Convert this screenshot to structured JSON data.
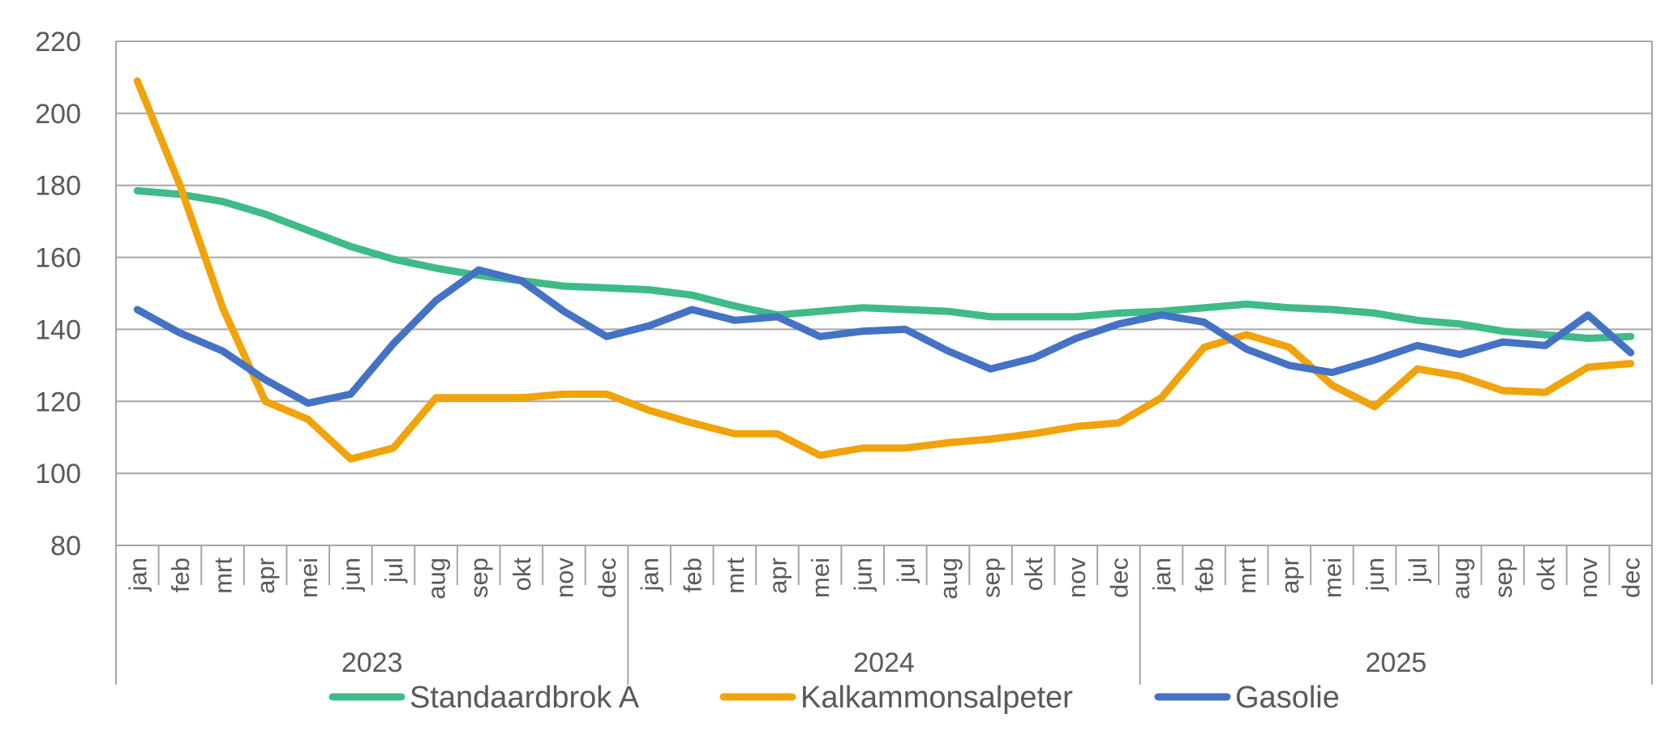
{
  "chart_data": {
    "type": "line",
    "title": "",
    "xlabel": "",
    "ylabel": "",
    "ylim": [
      80,
      220
    ],
    "yticks": [
      80,
      100,
      120,
      140,
      160,
      180,
      200,
      220
    ],
    "grid": true,
    "legend_position": "bottom",
    "years": [
      "2023",
      "2024",
      "2025"
    ],
    "months": [
      "jan",
      "feb",
      "mrt",
      "apr",
      "mei",
      "jun",
      "jul",
      "aug",
      "sep",
      "okt",
      "nov",
      "dec"
    ],
    "colors": {
      "Standaardbrok A": "#3fba89",
      "Kalkammonsalpeter": "#f0a30a",
      "Gasolie": "#4472c4"
    },
    "series": [
      {
        "name": "Standaardbrok A",
        "values": [
          178.5,
          177.5,
          175.5,
          172,
          167.5,
          163,
          159.5,
          157,
          155,
          153.5,
          152,
          151.5,
          151,
          149.5,
          146.5,
          144,
          145,
          146,
          145.5,
          145,
          143.5,
          143.5,
          143.5,
          144.5,
          145,
          146,
          147,
          146,
          145.5,
          144.5,
          142.5,
          141.5,
          139.5,
          138.5,
          137.5,
          138
        ]
      },
      {
        "name": "Kalkammonsalpeter",
        "values": [
          209,
          180,
          146,
          120,
          115,
          104,
          107,
          121,
          121,
          121,
          122,
          122,
          117.5,
          114,
          111,
          111,
          105,
          107,
          107,
          108.5,
          109.5,
          111,
          113,
          114,
          121,
          135,
          138.5,
          135,
          124.5,
          118.5,
          129,
          127,
          123,
          122.5,
          129.5,
          130.5
        ]
      },
      {
        "name": "Gasolie",
        "values": [
          145.5,
          139,
          134,
          126,
          119.5,
          122,
          136,
          148,
          156.5,
          153.5,
          145,
          138,
          141,
          145.5,
          142.5,
          143.5,
          138,
          139.5,
          140,
          134,
          129,
          132,
          137.5,
          141.5,
          144,
          142,
          134.5,
          130,
          128,
          131.5,
          135.5,
          133,
          136.5,
          135.5,
          144,
          133.5
        ]
      }
    ]
  }
}
